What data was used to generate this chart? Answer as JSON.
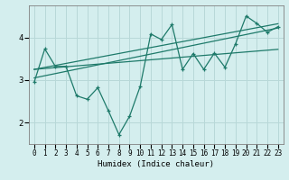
{
  "xlabel": "Humidex (Indice chaleur)",
  "bg_color": "#d4eeee",
  "grid_color": "#b8d8d8",
  "line_color": "#1e7a6a",
  "xlim": [
    -0.5,
    23.5
  ],
  "ylim": [
    1.5,
    4.75
  ],
  "yticks": [
    2,
    3,
    4
  ],
  "xticks": [
    0,
    1,
    2,
    3,
    4,
    5,
    6,
    7,
    8,
    9,
    10,
    11,
    12,
    13,
    14,
    15,
    16,
    17,
    18,
    19,
    20,
    21,
    22,
    23
  ],
  "main_x": [
    0,
    1,
    2,
    3,
    4,
    5,
    6,
    7,
    8,
    9,
    10,
    11,
    12,
    13,
    14,
    15,
    16,
    17,
    18,
    19,
    20,
    21,
    22,
    23
  ],
  "main_y": [
    2.95,
    3.73,
    3.32,
    3.32,
    2.63,
    2.55,
    2.82,
    2.28,
    1.72,
    2.15,
    2.85,
    4.08,
    3.95,
    4.3,
    3.25,
    3.62,
    3.25,
    3.63,
    3.3,
    3.85,
    4.5,
    4.33,
    4.12,
    4.25
  ],
  "line1_x": [
    0,
    23
  ],
  "line1_y": [
    3.05,
    4.22
  ],
  "line2_x": [
    0,
    23
  ],
  "line2_y": [
    3.25,
    4.32
  ],
  "line3_x": [
    0,
    23
  ],
  "line3_y": [
    3.25,
    3.72
  ]
}
